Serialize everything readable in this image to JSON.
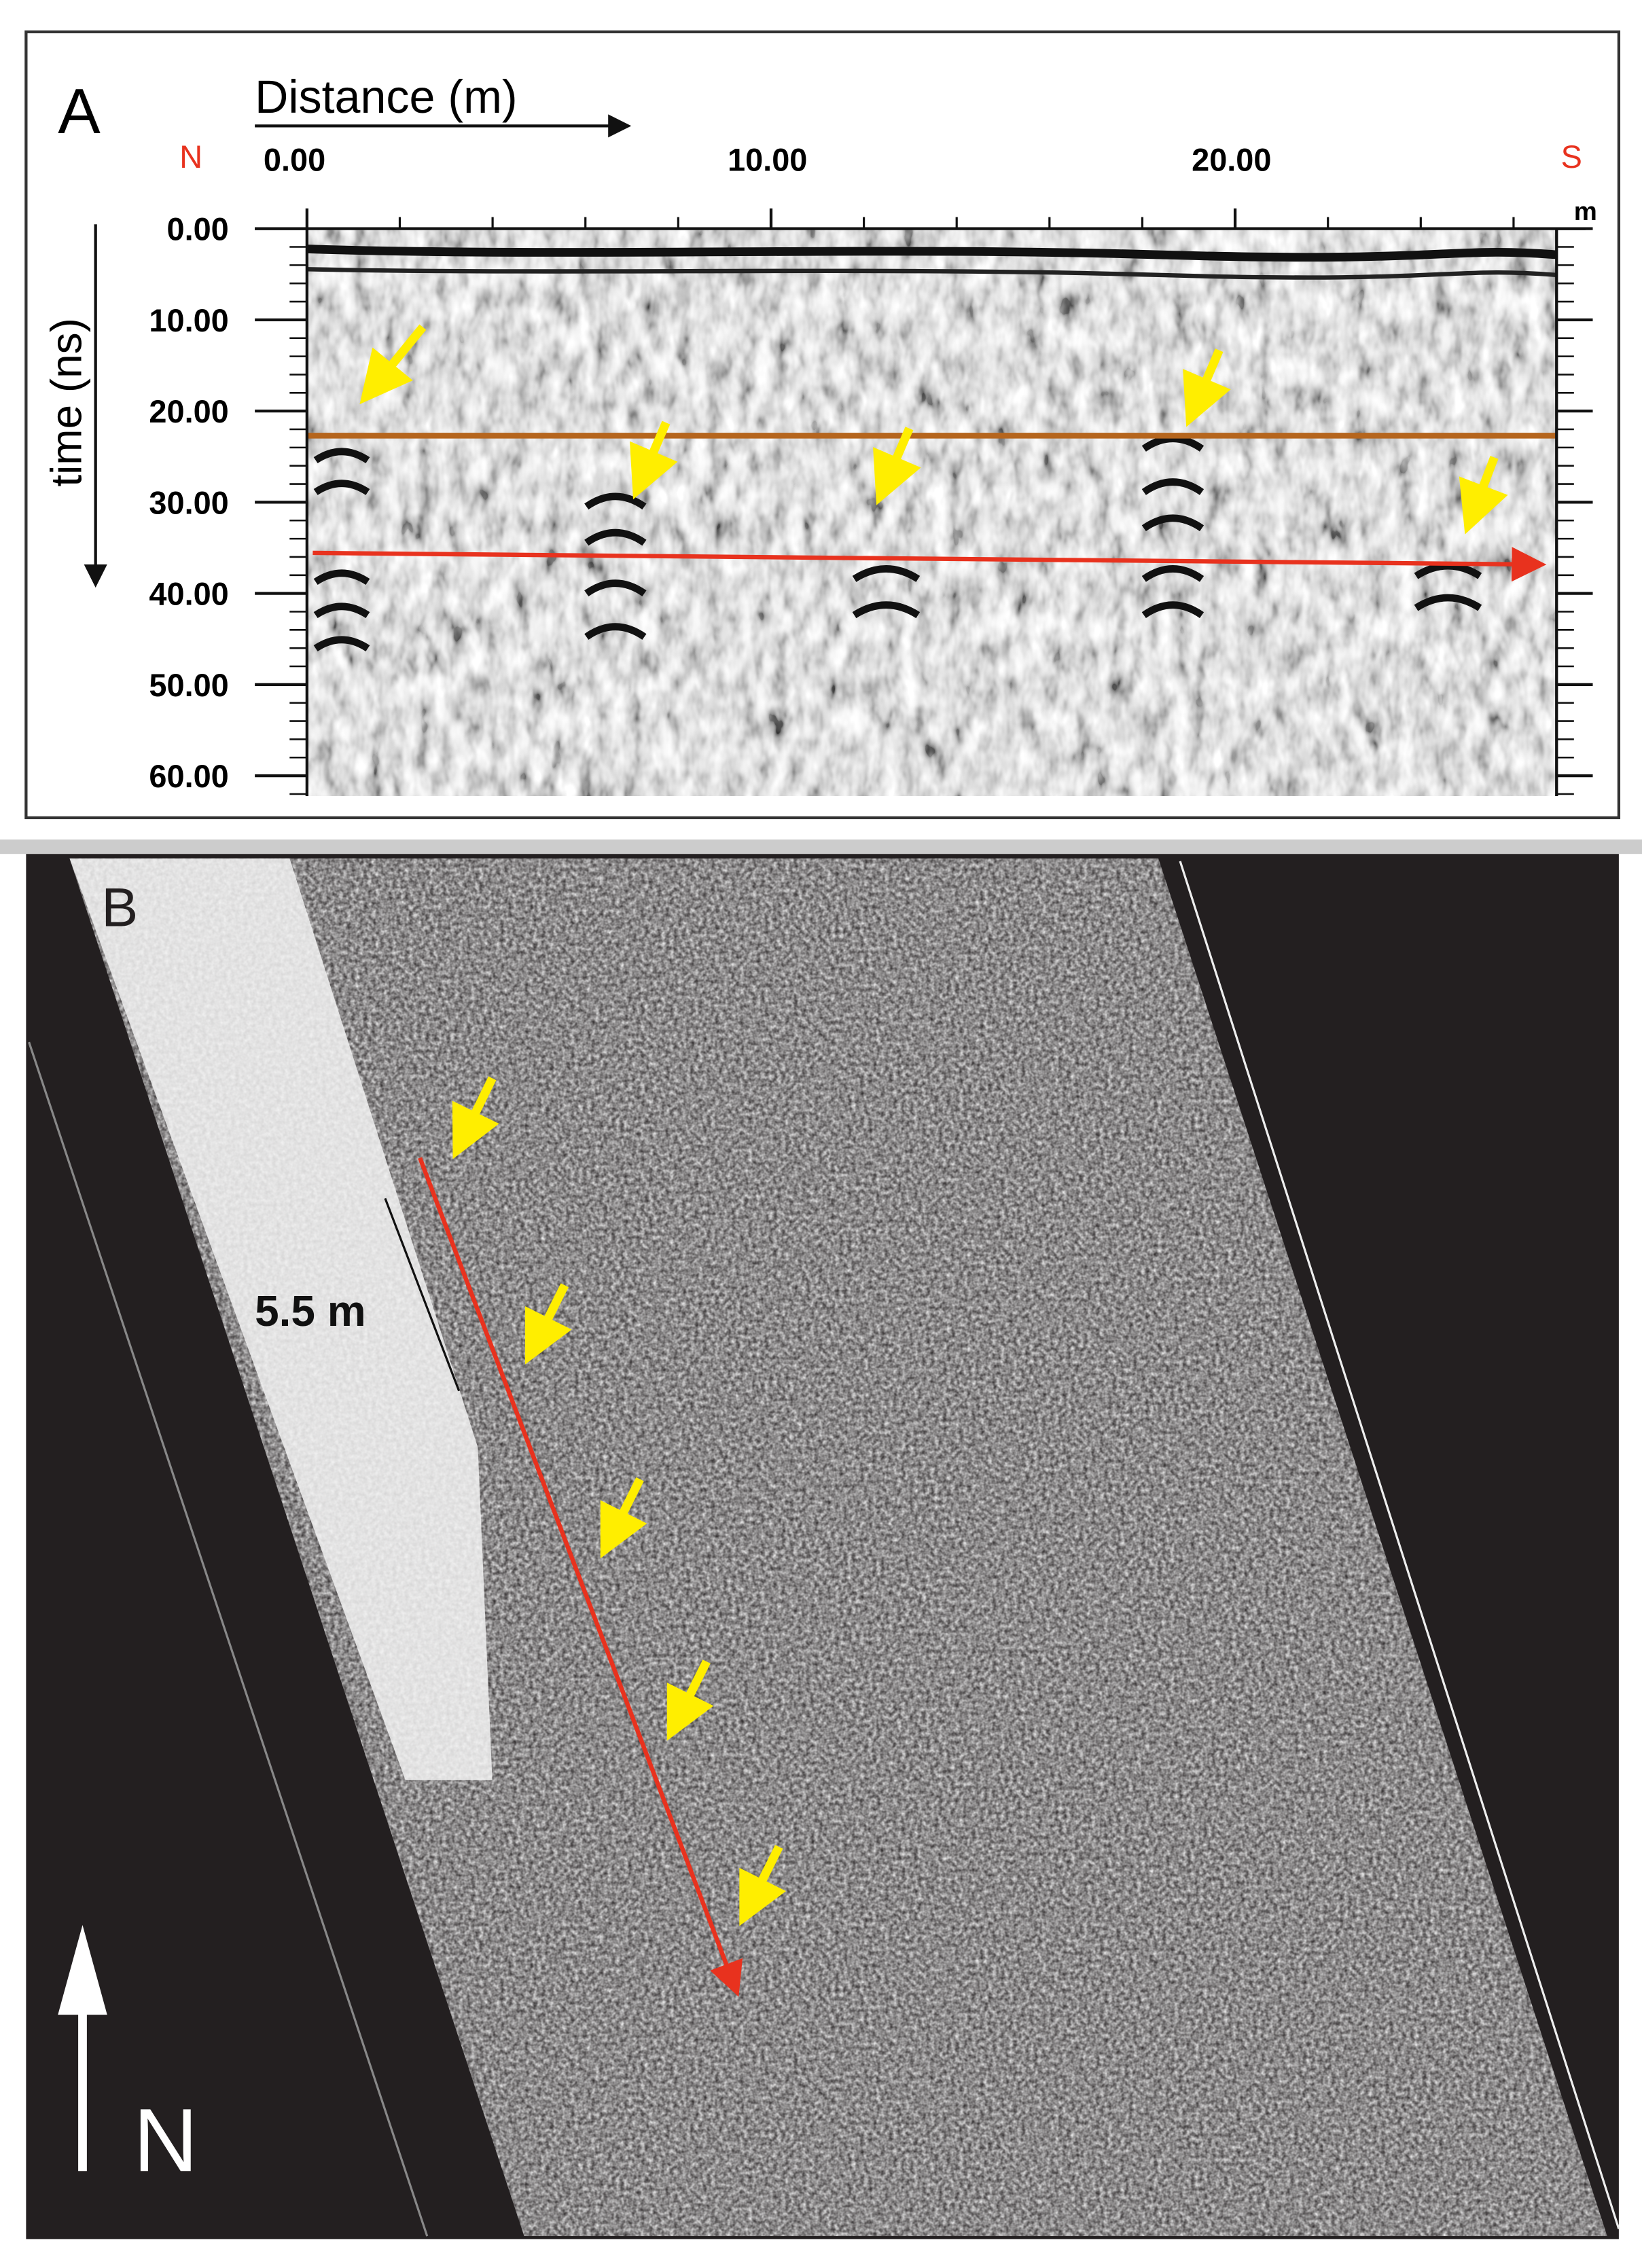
{
  "panel_a": {
    "label": "A",
    "x_axis": {
      "label": "Distance (m)",
      "unit": "m",
      "left_end": "N",
      "right_end": "S",
      "lim": [
        0,
        27
      ],
      "ticks": [
        {
          "value": 0,
          "label": "0.00"
        },
        {
          "value": 10,
          "label": "10.00"
        },
        {
          "value": 20,
          "label": "20.00"
        }
      ]
    },
    "y_axis": {
      "label": "time (ns)",
      "lim": [
        0,
        62
      ],
      "ticks": [
        {
          "value": 0,
          "label": "0.00"
        },
        {
          "value": 10,
          "label": "10.00"
        },
        {
          "value": 20,
          "label": "20.00"
        },
        {
          "value": 30,
          "label": "30.00"
        },
        {
          "value": 40,
          "label": "40.00"
        },
        {
          "value": 50,
          "label": "50.00"
        },
        {
          "value": 60,
          "label": "60.00"
        }
      ]
    }
  },
  "panel_b": {
    "label": "B",
    "scale_bar": "5.5 m",
    "north": "N"
  }
}
